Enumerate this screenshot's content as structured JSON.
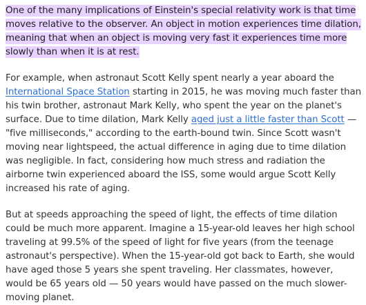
{
  "article": {
    "highlighted_paragraph": "One of the many implications of Einstein's special relativity work is that time moves relative to the observer. An object in motion experiences time dilation, meaning that when an object is moving very fast it experiences time more slowly than when it is at rest.",
    "paragraph2": {
      "text_before_link1": "For example, when astronaut Scott Kelly spent nearly a year aboard the ",
      "link1": "International Space Station",
      "text_between_links": " starting in 2015, he was moving much faster than his twin brother, astronaut Mark Kelly, who spent the year on the planet's surface. Due to time dilation, Mark Kelly ",
      "link2": "aged just a little faster than Scott",
      "text_after_link2": " — \"five milliseconds,\" according to the earth-bound twin. Since Scott wasn't moving near lightspeed, the actual difference in aging due to time dilation was negligible. In fact, considering how much stress and radiation the airborne twin experienced aboard the ISS, some would argue Scott Kelly increased his rate of aging."
    },
    "paragraph3": "But at speeds approaching the speed of light, the effects of time dilation could be much more apparent. Imagine a 15-year-old leaves her high school traveling at 99.5% of the speed of light for five years (from the teenage astronaut's perspective). When the 15-year-old got back to Earth, she would have aged those 5 years she spent traveling. Her classmates, however, would be 65 years old — 50 years would have passed on the much slower-moving planet."
  },
  "colors": {
    "highlight": "#e9d2ff",
    "link": "#2f6fcf",
    "text": "#333333"
  }
}
